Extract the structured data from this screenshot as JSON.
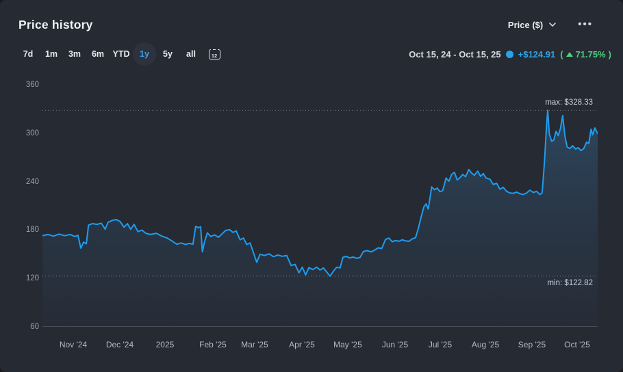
{
  "header": {
    "title": "Price history",
    "unit_selector": {
      "label": "Price ($)"
    },
    "more_menu": "•••"
  },
  "toolbar": {
    "ranges": [
      {
        "id": "7d",
        "label": "7d"
      },
      {
        "id": "1m",
        "label": "1m"
      },
      {
        "id": "3m",
        "label": "3m"
      },
      {
        "id": "6m",
        "label": "6m"
      },
      {
        "id": "ytd",
        "label": "YTD"
      },
      {
        "id": "1y",
        "label": "1y"
      },
      {
        "id": "5y",
        "label": "5y"
      },
      {
        "id": "all",
        "label": "all"
      }
    ],
    "active_range": "1y",
    "calendar_day": "12",
    "period": "Oct 15, 24 - Oct 15, 25",
    "change_abs": "+$124.91",
    "paren_open": "(",
    "change_pct": "71.75%",
    "paren_close": ")"
  },
  "colors": {
    "background": "#262a33",
    "line": "#1f9ced",
    "legend_dot": "#29a3e8",
    "change_abs": "#2fa4e7",
    "change_pct": "#4fce7d",
    "active_range_text": "#38a1ee",
    "axis_label": "#9aa1aa",
    "annotation": "#ccd1d8"
  },
  "chart_data": {
    "type": "line",
    "title": "Price history",
    "series_name": "Price ($)",
    "x_range": [
      "Oct 15, 24",
      "Oct 15, 25"
    ],
    "ylim": [
      60,
      360
    ],
    "y_ticks": [
      360,
      300,
      240,
      180,
      120,
      60
    ],
    "x_ticks": [
      {
        "label": "Nov '24",
        "f": 0.0555
      },
      {
        "label": "Dec '24",
        "f": 0.1393
      },
      {
        "label": "2025",
        "f": 0.2207
      },
      {
        "label": "Feb '25",
        "f": 0.307
      },
      {
        "label": "Mar '25",
        "f": 0.3822
      },
      {
        "label": "Apr '25",
        "f": 0.4673
      },
      {
        "label": "May '25",
        "f": 0.5499
      },
      {
        "label": "Jun '25",
        "f": 0.635
      },
      {
        "label": "Jul '25",
        "f": 0.7164
      },
      {
        "label": "Aug '25",
        "f": 0.7978
      },
      {
        "label": "Sep '25",
        "f": 0.8816
      },
      {
        "label": "Oct '25",
        "f": 0.963
      }
    ],
    "max": {
      "label": "max: $328.33",
      "value": 328.33
    },
    "min": {
      "label": "min: $122.82",
      "value": 122.82
    },
    "grid": "off",
    "legend_position": "toolbar-right",
    "points": [
      [
        0.0,
        173
      ],
      [
        0.01,
        174.5
      ],
      [
        0.02,
        172.5
      ],
      [
        0.03,
        175
      ],
      [
        0.04,
        173
      ],
      [
        0.05,
        174.5
      ],
      [
        0.058,
        172
      ],
      [
        0.064,
        173.5
      ],
      [
        0.069,
        157.5
      ],
      [
        0.074,
        165
      ],
      [
        0.079,
        163
      ],
      [
        0.083,
        186
      ],
      [
        0.09,
        188
      ],
      [
        0.098,
        187
      ],
      [
        0.106,
        188.5
      ],
      [
        0.113,
        181
      ],
      [
        0.118,
        189.5
      ],
      [
        0.126,
        192
      ],
      [
        0.133,
        193
      ],
      [
        0.14,
        190.5
      ],
      [
        0.147,
        183.5
      ],
      [
        0.153,
        188
      ],
      [
        0.159,
        181
      ],
      [
        0.165,
        187
      ],
      [
        0.172,
        178
      ],
      [
        0.179,
        180
      ],
      [
        0.186,
        176
      ],
      [
        0.195,
        174.5
      ],
      [
        0.205,
        176
      ],
      [
        0.215,
        172.5
      ],
      [
        0.225,
        170
      ],
      [
        0.234,
        166
      ],
      [
        0.242,
        162.5
      ],
      [
        0.25,
        164
      ],
      [
        0.258,
        162
      ],
      [
        0.264,
        163.5
      ],
      [
        0.271,
        162.5
      ],
      [
        0.276,
        184.5
      ],
      [
        0.281,
        183
      ],
      [
        0.285,
        184
      ],
      [
        0.288,
        153
      ],
      [
        0.292,
        165.5
      ],
      [
        0.297,
        176.5
      ],
      [
        0.303,
        172
      ],
      [
        0.31,
        174
      ],
      [
        0.317,
        171
      ],
      [
        0.323,
        175
      ],
      [
        0.33,
        179.5
      ],
      [
        0.337,
        180.5
      ],
      [
        0.343,
        177
      ],
      [
        0.349,
        179
      ],
      [
        0.356,
        168
      ],
      [
        0.362,
        170
      ],
      [
        0.368,
        162
      ],
      [
        0.374,
        164
      ],
      [
        0.38,
        152
      ],
      [
        0.386,
        140
      ],
      [
        0.392,
        150
      ],
      [
        0.4,
        148.5
      ],
      [
        0.408,
        150.5
      ],
      [
        0.416,
        147
      ],
      [
        0.424,
        149
      ],
      [
        0.432,
        147.5
      ],
      [
        0.44,
        148.5
      ],
      [
        0.448,
        136
      ],
      [
        0.455,
        137.5
      ],
      [
        0.462,
        127
      ],
      [
        0.468,
        134
      ],
      [
        0.474,
        124.5
      ],
      [
        0.48,
        133.5
      ],
      [
        0.487,
        131
      ],
      [
        0.494,
        134
      ],
      [
        0.5,
        130.5
      ],
      [
        0.506,
        133
      ],
      [
        0.512,
        128
      ],
      [
        0.518,
        122.82
      ],
      [
        0.524,
        129
      ],
      [
        0.53,
        134
      ],
      [
        0.536,
        133
      ],
      [
        0.541,
        146
      ],
      [
        0.547,
        147.5
      ],
      [
        0.553,
        145.5
      ],
      [
        0.56,
        146.5
      ],
      [
        0.566,
        145
      ],
      [
        0.572,
        146
      ],
      [
        0.578,
        153.5
      ],
      [
        0.585,
        154.5
      ],
      [
        0.592,
        153
      ],
      [
        0.598,
        155
      ],
      [
        0.605,
        158
      ],
      [
        0.611,
        157
      ],
      [
        0.618,
        168.5
      ],
      [
        0.624,
        170
      ],
      [
        0.63,
        165.5
      ],
      [
        0.636,
        167
      ],
      [
        0.642,
        166
      ],
      [
        0.648,
        168
      ],
      [
        0.654,
        166.5
      ],
      [
        0.66,
        166
      ],
      [
        0.666,
        169
      ],
      [
        0.672,
        170.5
      ],
      [
        0.677,
        182
      ],
      [
        0.682,
        196
      ],
      [
        0.687,
        209
      ],
      [
        0.691,
        212.5
      ],
      [
        0.695,
        206
      ],
      [
        0.701,
        233.5
      ],
      [
        0.706,
        230
      ],
      [
        0.711,
        232
      ],
      [
        0.716,
        227.5
      ],
      [
        0.721,
        229
      ],
      [
        0.727,
        244.5
      ],
      [
        0.732,
        240.5
      ],
      [
        0.737,
        249
      ],
      [
        0.742,
        251.5
      ],
      [
        0.747,
        242
      ],
      [
        0.752,
        245
      ],
      [
        0.757,
        249
      ],
      [
        0.762,
        246
      ],
      [
        0.768,
        255
      ],
      [
        0.773,
        250.5
      ],
      [
        0.778,
        248
      ],
      [
        0.784,
        253
      ],
      [
        0.789,
        246.5
      ],
      [
        0.794,
        250
      ],
      [
        0.799,
        244.5
      ],
      [
        0.806,
        243
      ],
      [
        0.812,
        236.5
      ],
      [
        0.818,
        238
      ],
      [
        0.824,
        230.5
      ],
      [
        0.83,
        233
      ],
      [
        0.836,
        228
      ],
      [
        0.842,
        226
      ],
      [
        0.848,
        225.5
      ],
      [
        0.854,
        227
      ],
      [
        0.86,
        225
      ],
      [
        0.866,
        224
      ],
      [
        0.872,
        226
      ],
      [
        0.878,
        229.5
      ],
      [
        0.884,
        226.5
      ],
      [
        0.89,
        228
      ],
      [
        0.896,
        224
      ],
      [
        0.9,
        226
      ],
      [
        0.904,
        262
      ],
      [
        0.908,
        310
      ],
      [
        0.91,
        328.33
      ],
      [
        0.913,
        299
      ],
      [
        0.917,
        290
      ],
      [
        0.921,
        291.5
      ],
      [
        0.925,
        302.5
      ],
      [
        0.929,
        297
      ],
      [
        0.933,
        306
      ],
      [
        0.937,
        322
      ],
      [
        0.941,
        296
      ],
      [
        0.945,
        283
      ],
      [
        0.95,
        281
      ],
      [
        0.955,
        284.5
      ],
      [
        0.96,
        280.5
      ],
      [
        0.965,
        282
      ],
      [
        0.97,
        278.5
      ],
      [
        0.975,
        281
      ],
      [
        0.98,
        289
      ],
      [
        0.984,
        287
      ],
      [
        0.988,
        305
      ],
      [
        0.991,
        298
      ],
      [
        0.995,
        306.5
      ],
      [
        1.0,
        299.5
      ]
    ]
  }
}
